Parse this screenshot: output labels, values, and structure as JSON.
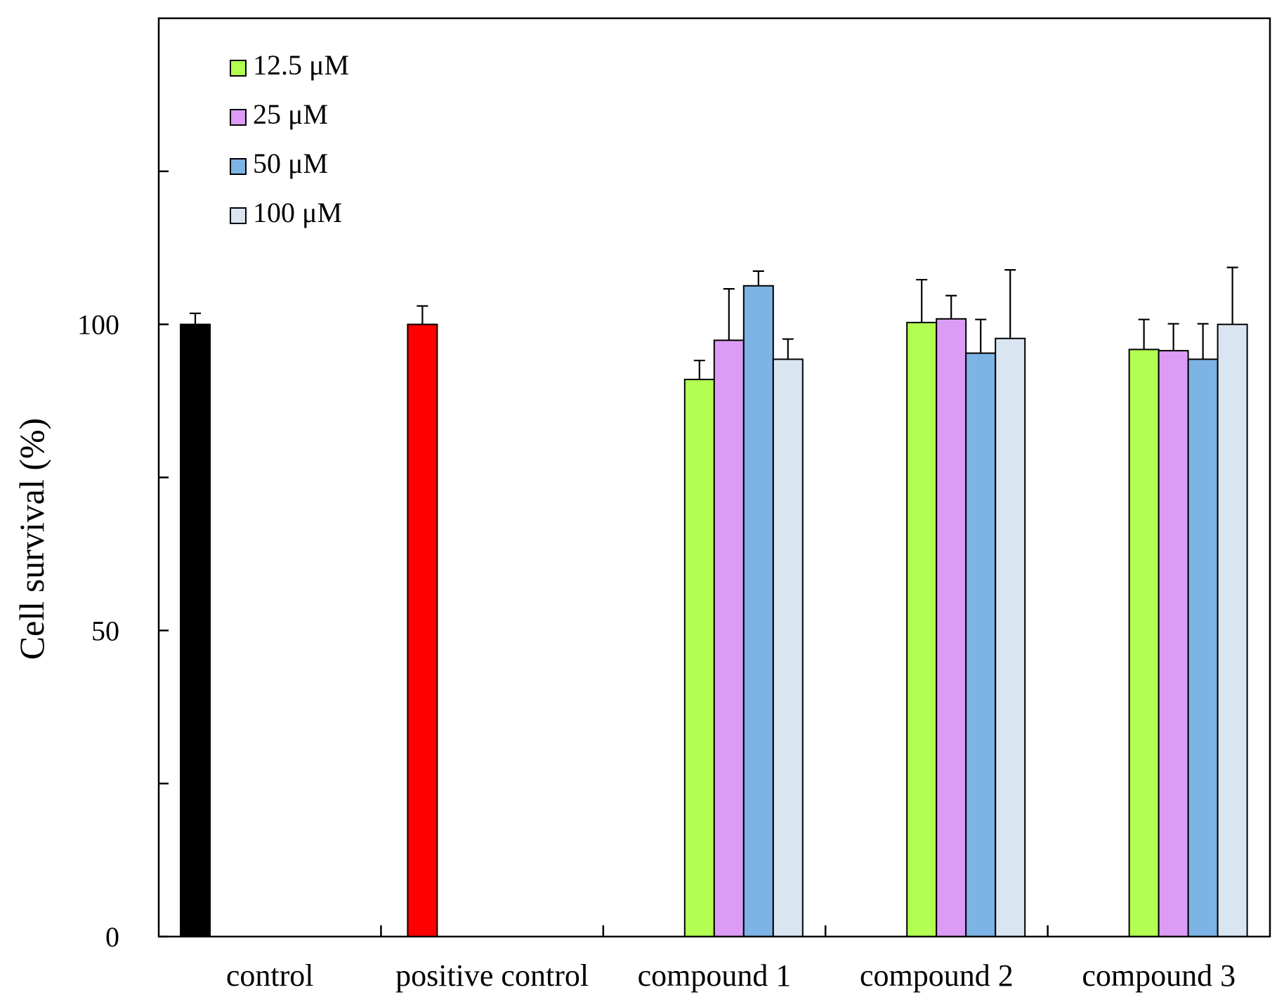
{
  "chart_data": {
    "type": "bar",
    "title": "",
    "xlabel": "",
    "ylabel": "Cell  survival (%)",
    "ylim": [
      0,
      150
    ],
    "y_major_ticks": [
      0,
      25,
      50,
      75,
      100,
      125
    ],
    "y_tick_labels": [
      {
        "value": 0,
        "label": "0"
      },
      {
        "value": 50,
        "label": "50"
      },
      {
        "value": 100,
        "label": "100"
      }
    ],
    "categories": [
      "control",
      "positive control",
      "compound 1",
      "compound 2",
      "compound 3"
    ],
    "legend_position": "top-left",
    "single_bars": [
      {
        "category": "control",
        "name": "control",
        "value": 100.0,
        "error": 1.8,
        "color": "#000000"
      },
      {
        "category": "positive control",
        "name": "positive control",
        "value": 100.0,
        "error": 3.0,
        "color": "#ff0000"
      }
    ],
    "series": [
      {
        "name": "12.5 μM",
        "color": "#b2ff52",
        "values": [
          null,
          null,
          91.0,
          100.3,
          95.9
        ],
        "errors": [
          null,
          null,
          3.1,
          7.0,
          4.9
        ]
      },
      {
        "name": "25 μM",
        "color": "#dc9cf5",
        "values": [
          null,
          null,
          97.4,
          100.9,
          95.7
        ],
        "errors": [
          null,
          null,
          8.4,
          3.8,
          4.4
        ]
      },
      {
        "name": "50 μM",
        "color": "#7db3e5",
        "values": [
          null,
          null,
          106.3,
          95.3,
          94.3
        ],
        "errors": [
          null,
          null,
          2.4,
          5.5,
          5.8
        ]
      },
      {
        "name": "100 μM",
        "color": "#d9e6f2",
        "values": [
          null,
          null,
          94.3,
          97.7,
          100.0
        ],
        "errors": [
          null,
          null,
          3.3,
          11.2,
          9.3
        ]
      }
    ]
  }
}
